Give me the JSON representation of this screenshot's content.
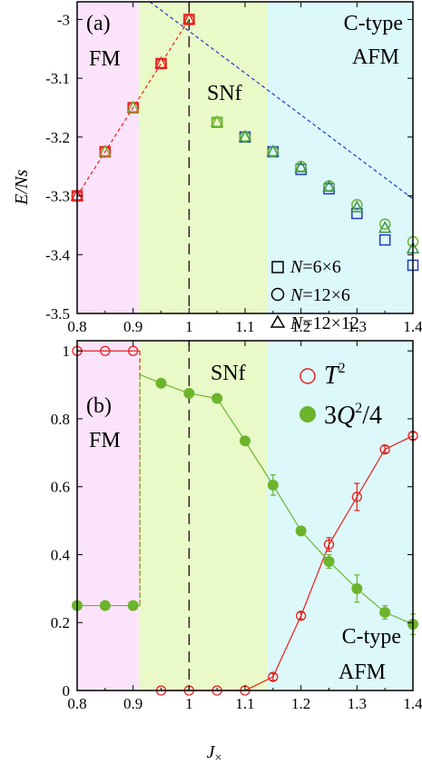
{
  "colors": {
    "fm_region": "#fbe3fb",
    "snf_region": "#e9fac8",
    "afm_region": "#dcf8fb",
    "red": "#e8201c",
    "green": "#6cb42c",
    "blue": "#2238c8",
    "dark_green": "#3c9450"
  },
  "chart_data": [
    {
      "type": "scatter",
      "panel_label": "(a)",
      "xlabel": "",
      "ylabel": "E/Ns",
      "xlim": [
        0.8,
        1.4
      ],
      "ylim": [
        -3.5,
        -2.97
      ],
      "xticks": [
        "0.8",
        "0.9",
        "1",
        "1.1",
        "1.2",
        "1.3",
        "1.4"
      ],
      "yticks": [
        "-3",
        "-3.1",
        "-3.2",
        "-3.3",
        "-3.4",
        "-3.5"
      ],
      "regions": [
        {
          "label": "FM",
          "from": 0.8,
          "to": 0.91
        },
        {
          "label": "SNf",
          "from": 0.91,
          "to": 1.14
        },
        {
          "label": "C-type\nAFM",
          "from": 1.14,
          "to": 1.4
        }
      ],
      "vline": 1.0,
      "series": [
        {
          "name": "N=6×6",
          "marker": "square",
          "x": [
            0.8,
            0.85,
            0.9,
            0.95,
            1.0,
            1.05,
            1.1,
            1.15,
            1.2,
            1.25,
            1.3,
            1.35,
            1.4
          ],
          "y": [
            -3.3,
            -3.225,
            -3.15,
            -3.075,
            -3.0,
            -3.175,
            -3.2,
            -3.225,
            -3.255,
            -3.288,
            -3.33,
            -3.375,
            -3.418
          ]
        },
        {
          "name": "N=12×6",
          "marker": "circle",
          "x": [
            0.8,
            0.85,
            0.9,
            0.95,
            1.0,
            1.05,
            1.1,
            1.15,
            1.2,
            1.25,
            1.3,
            1.35,
            1.4
          ],
          "y": [
            -3.3,
            -3.225,
            -3.15,
            -3.075,
            -3.0,
            -3.175,
            -3.2,
            -3.225,
            -3.25,
            -3.283,
            -3.315,
            -3.348,
            -3.378
          ]
        },
        {
          "name": "N=12×12",
          "marker": "triangle",
          "x": [
            0.8,
            0.85,
            0.9,
            0.95,
            1.0,
            1.05,
            1.1,
            1.15,
            1.2,
            1.25,
            1.3,
            1.35,
            1.4
          ],
          "y": [
            -3.3,
            -3.225,
            -3.15,
            -3.075,
            -3.0,
            -3.175,
            -3.2,
            -3.225,
            -3.252,
            -3.285,
            -3.32,
            -3.355,
            -3.39
          ]
        }
      ],
      "fm_line": {
        "x": [
          0.8,
          1.0
        ],
        "y": [
          -3.3,
          -3.0
        ]
      },
      "afm_line": {
        "x": [
          0.93,
          1.4
        ],
        "y": [
          -2.97,
          -3.305
        ]
      }
    },
    {
      "type": "line",
      "panel_label": "(b)",
      "xlabel": "J×",
      "ylabel": "",
      "xlim": [
        0.8,
        1.4
      ],
      "ylim": [
        0,
        1.03
      ],
      "xticks": [
        "0.8",
        "0.9",
        "1",
        "1.1",
        "1.2",
        "1.3",
        "1.4"
      ],
      "yticks": [
        "0",
        "0.2",
        "0.4",
        "0.6",
        "0.8",
        "1"
      ],
      "regions": [
        {
          "label": "FM",
          "from": 0.8,
          "to": 0.91
        },
        {
          "label": "SNf",
          "from": 0.91,
          "to": 1.14
        },
        {
          "label": "C-type\nAFM",
          "from": 1.14,
          "to": 1.4
        }
      ],
      "vline": 1.0,
      "series": [
        {
          "name": "T2",
          "marker": "open-circle",
          "x": [
            0.8,
            0.85,
            0.9,
            0.95,
            1.0,
            1.05,
            1.1,
            1.15,
            1.2,
            1.25,
            1.3,
            1.35,
            1.4
          ],
          "y": [
            1.0,
            1.0,
            1.0,
            0.0,
            0.0,
            0.0,
            0.0,
            0.04,
            0.22,
            0.43,
            0.57,
            0.71,
            0.75
          ],
          "err": [
            0,
            0,
            0,
            0,
            0,
            0,
            0,
            0.01,
            0.01,
            0.02,
            0.04,
            0.01,
            0.01
          ]
        },
        {
          "name": "3Q2/4",
          "marker": "filled-circle",
          "x": [
            0.8,
            0.85,
            0.9,
            0.95,
            1.0,
            1.05,
            1.1,
            1.15,
            1.2,
            1.25,
            1.3,
            1.35,
            1.4
          ],
          "y": [
            0.25,
            0.25,
            0.25,
            0.905,
            0.875,
            0.86,
            0.735,
            0.605,
            0.47,
            0.38,
            0.3,
            0.23,
            0.195
          ],
          "err": [
            0,
            0,
            0,
            0,
            0,
            0,
            0,
            0.03,
            0.01,
            0.02,
            0.04,
            0.02,
            0.03
          ]
        }
      ]
    }
  ]
}
